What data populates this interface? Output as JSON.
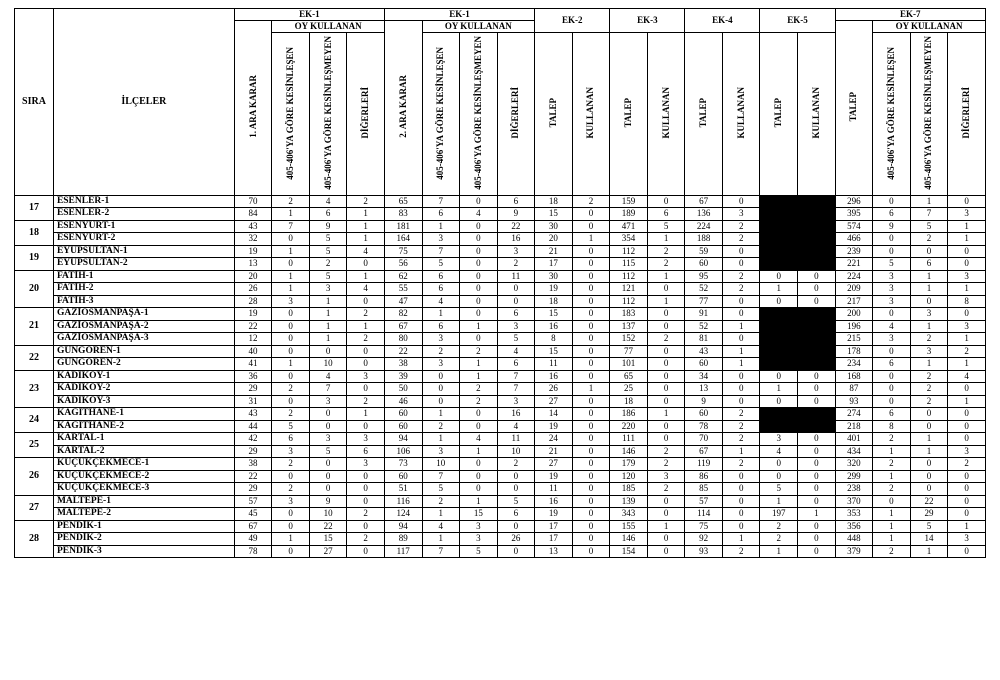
{
  "headers": {
    "sira": "SIRA",
    "ilceler": "İLÇELER",
    "ek1a": "EK-1",
    "ek1b": "EK-1",
    "ek2": "EK-2",
    "ek3": "EK-3",
    "ek4": "EK-4",
    "ek5": "EK-5",
    "ek7": "EK-7",
    "oy_kullanan": "OY KULLANAN",
    "ara_karar_1": "1. ARA KARAR",
    "ara_karar_2": "2. ARA KARAR",
    "kes": "405-406'YA GÖRE KESİNLEŞEN",
    "kesm": "405-406'YA GÖRE KESİNLEŞMEYEN",
    "digerleri": "DİĞERLERİ",
    "talep": "TALEP",
    "kullanan": "KULLANAN"
  },
  "groups": [
    {
      "sira": "17",
      "rows": [
        {
          "ilce": "ESENLER-1",
          "c": [
            70,
            2,
            4,
            2,
            65,
            7,
            0,
            6,
            18,
            2,
            159,
            0,
            67,
            0,
            "B",
            "B",
            296,
            0,
            1,
            0
          ]
        },
        {
          "ilce": "ESENLER-2",
          "c": [
            84,
            1,
            6,
            1,
            83,
            6,
            4,
            9,
            15,
            0,
            189,
            6,
            136,
            3,
            "B",
            "B",
            395,
            6,
            7,
            3
          ]
        }
      ]
    },
    {
      "sira": "18",
      "rows": [
        {
          "ilce": "ESENYURT-1",
          "c": [
            43,
            7,
            9,
            1,
            181,
            1,
            0,
            22,
            30,
            0,
            471,
            5,
            224,
            2,
            "B",
            "B",
            574,
            9,
            5,
            1
          ]
        },
        {
          "ilce": "ESENYURT-2",
          "c": [
            32,
            0,
            5,
            1,
            164,
            3,
            0,
            16,
            20,
            1,
            354,
            1,
            188,
            2,
            "B",
            "B",
            466,
            0,
            2,
            1
          ]
        }
      ]
    },
    {
      "sira": "19",
      "rows": [
        {
          "ilce": "EYÜPSULTAN-1",
          "c": [
            19,
            1,
            5,
            4,
            75,
            7,
            0,
            3,
            21,
            0,
            112,
            2,
            59,
            0,
            "B",
            "B",
            239,
            0,
            0,
            0
          ]
        },
        {
          "ilce": "EYÜPSULTAN-2",
          "c": [
            13,
            0,
            2,
            0,
            56,
            5,
            0,
            2,
            17,
            0,
            115,
            2,
            60,
            0,
            "B",
            "B",
            221,
            5,
            6,
            0
          ]
        }
      ]
    },
    {
      "sira": "20",
      "rows": [
        {
          "ilce": "FATİH-1",
          "c": [
            20,
            1,
            5,
            1,
            62,
            6,
            0,
            11,
            30,
            0,
            112,
            1,
            95,
            2,
            0,
            0,
            224,
            3,
            1,
            3
          ]
        },
        {
          "ilce": "FATİH-2",
          "c": [
            26,
            1,
            3,
            4,
            55,
            6,
            0,
            0,
            19,
            0,
            121,
            0,
            52,
            2,
            1,
            0,
            209,
            3,
            1,
            1
          ]
        },
        {
          "ilce": "FATİH-3",
          "c": [
            28,
            3,
            1,
            0,
            47,
            4,
            0,
            0,
            18,
            0,
            112,
            1,
            77,
            0,
            0,
            0,
            217,
            3,
            0,
            8
          ]
        }
      ]
    },
    {
      "sira": "21",
      "rows": [
        {
          "ilce": "GAZİOSMANPAŞA-1",
          "c": [
            19,
            0,
            1,
            2,
            82,
            1,
            0,
            6,
            15,
            0,
            183,
            0,
            91,
            0,
            "B",
            "B",
            200,
            0,
            3,
            0
          ]
        },
        {
          "ilce": "GAZİOSMANPAŞA-2",
          "c": [
            22,
            0,
            1,
            1,
            67,
            6,
            1,
            3,
            16,
            0,
            137,
            0,
            52,
            1,
            "B",
            "B",
            196,
            4,
            1,
            3
          ]
        },
        {
          "ilce": "GAZİOSMANPAŞA-3",
          "c": [
            12,
            0,
            1,
            2,
            80,
            3,
            0,
            5,
            8,
            0,
            152,
            2,
            81,
            0,
            "B",
            "B",
            215,
            3,
            2,
            1
          ]
        }
      ]
    },
    {
      "sira": "22",
      "rows": [
        {
          "ilce": "GÜNGÖREN-1",
          "c": [
            40,
            0,
            0,
            0,
            22,
            2,
            2,
            4,
            15,
            0,
            77,
            0,
            43,
            1,
            "B",
            "B",
            178,
            0,
            3,
            2
          ]
        },
        {
          "ilce": "GÜNGÖREN-2",
          "c": [
            41,
            1,
            10,
            0,
            38,
            3,
            1,
            6,
            11,
            0,
            101,
            0,
            60,
            1,
            "B",
            "B",
            234,
            6,
            1,
            1
          ]
        }
      ]
    },
    {
      "sira": "23",
      "rows": [
        {
          "ilce": "KADIKÖY-1",
          "c": [
            36,
            0,
            4,
            3,
            39,
            0,
            1,
            7,
            16,
            0,
            65,
            0,
            34,
            0,
            0,
            0,
            168,
            0,
            2,
            4
          ]
        },
        {
          "ilce": "KADIKÖY-2",
          "c": [
            29,
            2,
            7,
            0,
            50,
            0,
            2,
            7,
            26,
            1,
            25,
            0,
            13,
            0,
            1,
            0,
            87,
            0,
            2,
            0
          ]
        },
        {
          "ilce": "KADIKÖY-3",
          "c": [
            31,
            0,
            3,
            2,
            46,
            0,
            2,
            3,
            27,
            0,
            18,
            0,
            9,
            0,
            0,
            0,
            93,
            0,
            2,
            1
          ]
        }
      ]
    },
    {
      "sira": "24",
      "rows": [
        {
          "ilce": "KAĞITHANE-1",
          "c": [
            43,
            2,
            0,
            1,
            60,
            1,
            0,
            16,
            14,
            0,
            186,
            1,
            60,
            2,
            "B",
            "B",
            274,
            6,
            0,
            0
          ]
        },
        {
          "ilce": "KAĞITHANE-2",
          "c": [
            44,
            5,
            0,
            0,
            60,
            2,
            0,
            4,
            19,
            0,
            220,
            0,
            78,
            2,
            "B",
            "B",
            218,
            8,
            0,
            0
          ]
        }
      ]
    },
    {
      "sira": "25",
      "rows": [
        {
          "ilce": "KARTAL-1",
          "c": [
            42,
            6,
            3,
            3,
            94,
            1,
            4,
            11,
            24,
            0,
            111,
            0,
            70,
            2,
            3,
            0,
            401,
            2,
            1,
            0
          ]
        },
        {
          "ilce": "KARTAL-2",
          "c": [
            29,
            3,
            5,
            6,
            106,
            3,
            1,
            10,
            21,
            0,
            146,
            2,
            67,
            1,
            4,
            0,
            434,
            1,
            1,
            3
          ]
        }
      ]
    },
    {
      "sira": "26",
      "rows": [
        {
          "ilce": "KÜÇÜKÇEKMECE-1",
          "c": [
            38,
            2,
            0,
            3,
            73,
            10,
            0,
            2,
            27,
            0,
            179,
            2,
            119,
            2,
            0,
            0,
            320,
            2,
            0,
            2
          ]
        },
        {
          "ilce": "KÜÇÜKÇEKMECE-2",
          "c": [
            22,
            0,
            0,
            0,
            60,
            7,
            0,
            0,
            19,
            0,
            120,
            3,
            86,
            0,
            0,
            0,
            299,
            1,
            0,
            0
          ]
        },
        {
          "ilce": "KÜÇÜKÇEKMECE-3",
          "c": [
            29,
            2,
            0,
            0,
            51,
            5,
            0,
            0,
            11,
            0,
            185,
            2,
            85,
            0,
            5,
            0,
            238,
            2,
            0,
            0
          ]
        }
      ]
    },
    {
      "sira": "27",
      "rows": [
        {
          "ilce": "MALTEPE-1",
          "c": [
            57,
            3,
            9,
            0,
            116,
            2,
            1,
            5,
            16,
            0,
            139,
            0,
            57,
            0,
            1,
            0,
            370,
            0,
            22,
            0
          ]
        },
        {
          "ilce": "MALTEPE-2",
          "c": [
            45,
            0,
            10,
            2,
            124,
            1,
            15,
            6,
            19,
            0,
            343,
            0,
            114,
            0,
            197,
            1,
            353,
            1,
            29,
            0
          ]
        }
      ]
    },
    {
      "sira": "28",
      "rows": [
        {
          "ilce": "PENDİK-1",
          "c": [
            67,
            0,
            22,
            0,
            94,
            4,
            3,
            0,
            17,
            0,
            155,
            1,
            75,
            0,
            2,
            0,
            356,
            1,
            5,
            1
          ]
        },
        {
          "ilce": "PENDİK-2",
          "c": [
            49,
            1,
            15,
            2,
            89,
            1,
            3,
            26,
            17,
            0,
            146,
            0,
            92,
            1,
            2,
            0,
            448,
            1,
            14,
            3
          ]
        },
        {
          "ilce": "PENDİK-3",
          "c": [
            78,
            0,
            27,
            0,
            117,
            7,
            5,
            0,
            13,
            0,
            154,
            0,
            93,
            2,
            1,
            0,
            379,
            2,
            1,
            0
          ]
        }
      ]
    }
  ]
}
